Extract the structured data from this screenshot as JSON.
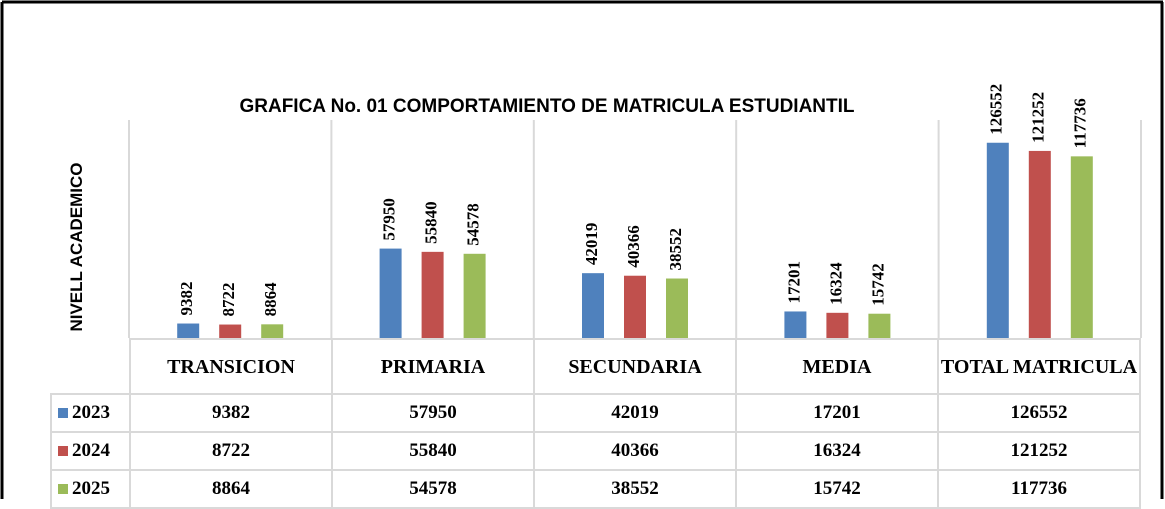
{
  "chart_data": {
    "type": "bar",
    "title": "GRAFICA No. 01 COMPORTAMIENTO DE MATRICULA ESTUDIANTIL",
    "y_label": "NIVELL ACADEMICO",
    "categories": [
      "TRANSICION",
      "PRIMARIA",
      "SECUNDARIA",
      "MEDIA",
      "TOTAL MATRICULA"
    ],
    "series": [
      {
        "name": "2023",
        "color": "#4f81bd",
        "values": [
          9382,
          57950,
          42019,
          17201,
          126552
        ]
      },
      {
        "name": "2024",
        "color": "#c0504d",
        "values": [
          8722,
          55840,
          40366,
          16324,
          121252
        ]
      },
      {
        "name": "2025",
        "color": "#9bbb59",
        "values": [
          8864,
          54578,
          38552,
          15742,
          117736
        ]
      }
    ],
    "ylim": [
      0,
      140000
    ]
  }
}
